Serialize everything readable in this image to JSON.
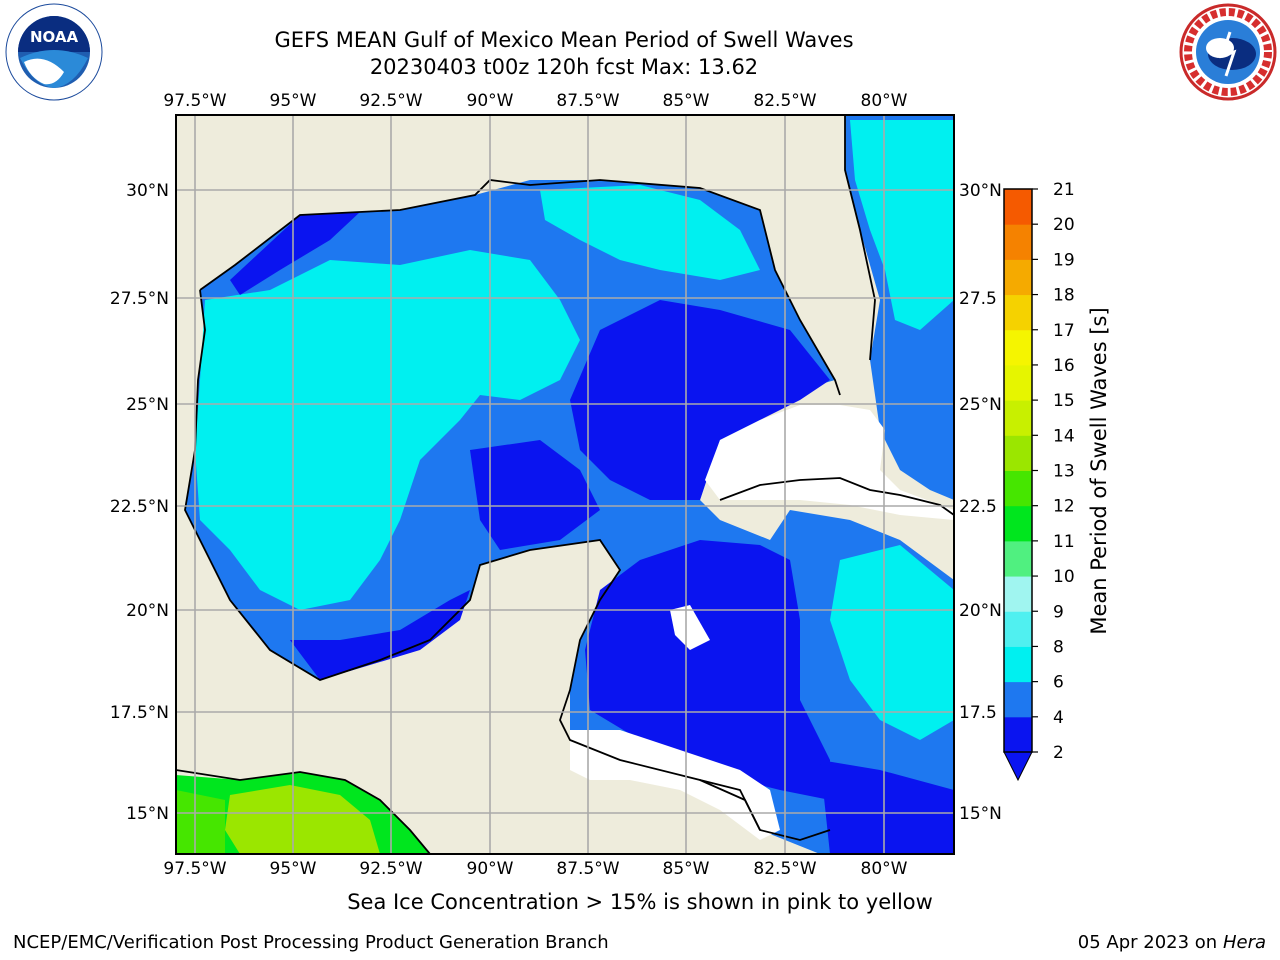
{
  "title": {
    "line1": "GEFS MEAN Gulf of Mexico Mean Period of Swell Waves",
    "line2": "20230403 t00z 120h fcst   Max: 13.62"
  },
  "map": {
    "lon_labels": [
      "97.5°W",
      "95°W",
      "92.5°W",
      "90°W",
      "87.5°W",
      "85°W",
      "82.5°W",
      "80°W"
    ],
    "lat_labels_left": [
      "30°N",
      "27.5°N",
      "25°N",
      "22.5°N",
      "20°N",
      "17.5°N",
      "15°N"
    ],
    "lat_labels_right": [
      "30°N",
      "27.5",
      "25°N",
      "22.5",
      "20°N",
      "17.5",
      "15°N"
    ],
    "land_color": "#eeecdc",
    "ocean_missing_color": "#ffffff"
  },
  "colorbar": {
    "label": "Mean Period of Swell Waves [s]",
    "ticks": [
      "2",
      "4",
      "6",
      "8",
      "9",
      "10",
      "11",
      "12",
      "13",
      "14",
      "15",
      "16",
      "17",
      "18",
      "19",
      "20",
      "21"
    ],
    "colors": [
      "#0a14f0",
      "#1e78f0",
      "#00f0f0",
      "#50f0f0",
      "#a0f5f0",
      "#50f080",
      "#00e61e",
      "#46e600",
      "#9be600",
      "#c8f000",
      "#e6f500",
      "#f5f500",
      "#f5d200",
      "#f5aa00",
      "#f58200",
      "#f55a00",
      "#f52d00",
      "#f50000"
    ]
  },
  "caption": "Sea Ice Concentration > 15% is shown in pink to yellow",
  "footer": {
    "left": "NCEP/EMC/Verification Post Processing Product Generation Branch",
    "date": "05 Apr 2023 on",
    "machine": "Hera"
  }
}
